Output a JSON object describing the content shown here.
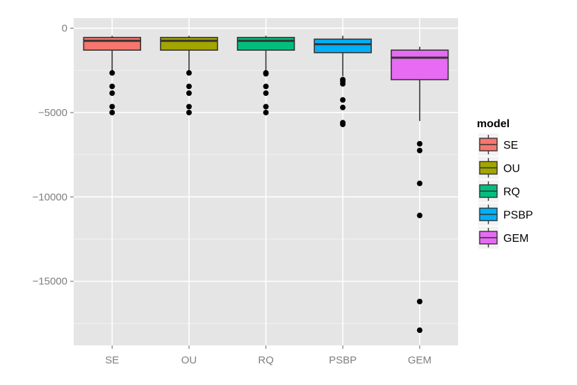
{
  "chart_data": {
    "type": "box",
    "title": "",
    "xlabel": "",
    "ylabel": "",
    "ylim": [
      -18800,
      600
    ],
    "y_ticks": [
      0,
      -5000,
      -10000,
      -15000
    ],
    "y_tick_labels": [
      "0",
      "−5000",
      "−10000",
      "−15000"
    ],
    "categories": [
      "SE",
      "OU",
      "RQ",
      "PSBP",
      "GEM"
    ],
    "legend": {
      "title": "model",
      "position": "right",
      "entries": [
        "SE",
        "OU",
        "RQ",
        "PSBP",
        "GEM"
      ]
    },
    "colors": [
      "#f8766d",
      "#a3a500",
      "#00bf7d",
      "#00b0f6",
      "#e76bf3"
    ],
    "series": [
      {
        "name": "SE",
        "whisker_high": -450,
        "q3": -550,
        "median": -750,
        "q1": -1300,
        "whisker_low": -2550,
        "outliers": [
          -2650,
          -3450,
          -3850,
          -4650,
          -5000
        ]
      },
      {
        "name": "OU",
        "whisker_high": -450,
        "q3": -550,
        "median": -750,
        "q1": -1300,
        "whisker_low": -2550,
        "outliers": [
          -2650,
          -3450,
          -3850,
          -4650,
          -5000
        ]
      },
      {
        "name": "RQ",
        "whisker_high": -450,
        "q3": -550,
        "median": -750,
        "q1": -1300,
        "whisker_low": -2550,
        "outliers": [
          -2650,
          -2700,
          -3450,
          -3850,
          -4650,
          -5000
        ]
      },
      {
        "name": "PSBP",
        "whisker_high": -450,
        "q3": -650,
        "median": -950,
        "q1": -1450,
        "whisker_low": -2850,
        "outliers": [
          -3050,
          -3150,
          -3300,
          -4250,
          -4700,
          -5600,
          -5700
        ]
      },
      {
        "name": "GEM",
        "whisker_high": -1100,
        "q3": -1300,
        "median": -1750,
        "q1": -3050,
        "whisker_low": -5500,
        "outliers": [
          -6850,
          -7250,
          -9200,
          -11100,
          -16200,
          -17900
        ]
      }
    ]
  }
}
